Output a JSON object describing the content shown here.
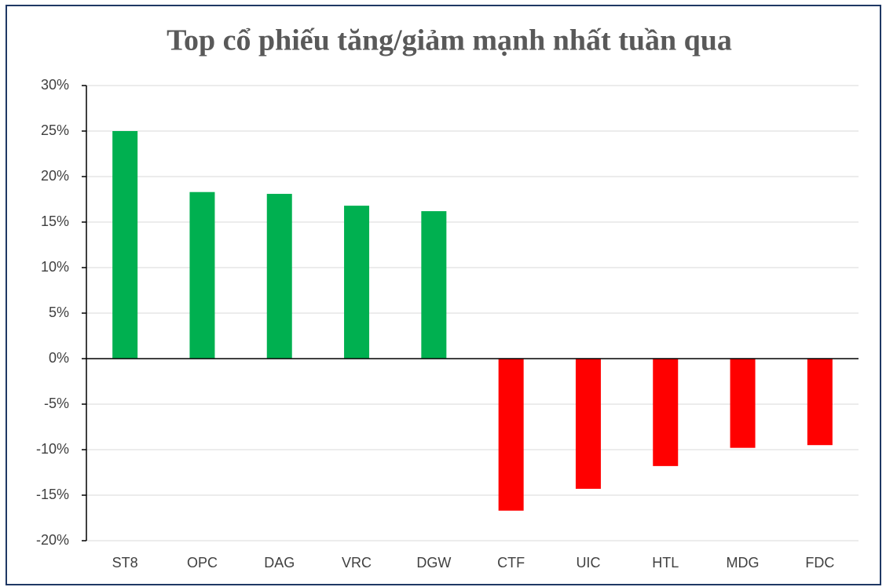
{
  "chart_data": {
    "type": "bar",
    "title": "Top cổ phiếu tăng/giảm mạnh nhất tuần qua",
    "categories": [
      "ST8",
      "OPC",
      "DAG",
      "VRC",
      "DGW",
      "CTF",
      "UIC",
      "HTL",
      "MDG",
      "FDC"
    ],
    "values": [
      25,
      18.3,
      18.1,
      16.8,
      16.2,
      -16.7,
      -14.3,
      -11.8,
      -9.8,
      -9.5
    ],
    "colors": [
      "#00b050",
      "#00b050",
      "#00b050",
      "#00b050",
      "#00b050",
      "#ff0000",
      "#ff0000",
      "#ff0000",
      "#ff0000",
      "#ff0000"
    ],
    "ylim": [
      -20,
      30
    ],
    "yticks": [
      {
        "value": -20,
        "label": "-20%"
      },
      {
        "value": -15,
        "label": "-15%"
      },
      {
        "value": -10,
        "label": "-10%"
      },
      {
        "value": -5,
        "label": "-5%"
      },
      {
        "value": 0,
        "label": "0%"
      },
      {
        "value": 5,
        "label": "5%"
      },
      {
        "value": 10,
        "label": "10%"
      },
      {
        "value": 15,
        "label": "15%"
      },
      {
        "value": 20,
        "label": "20%"
      },
      {
        "value": 25,
        "label": "25%"
      },
      {
        "value": 30,
        "label": "30%"
      }
    ],
    "grid": true
  }
}
